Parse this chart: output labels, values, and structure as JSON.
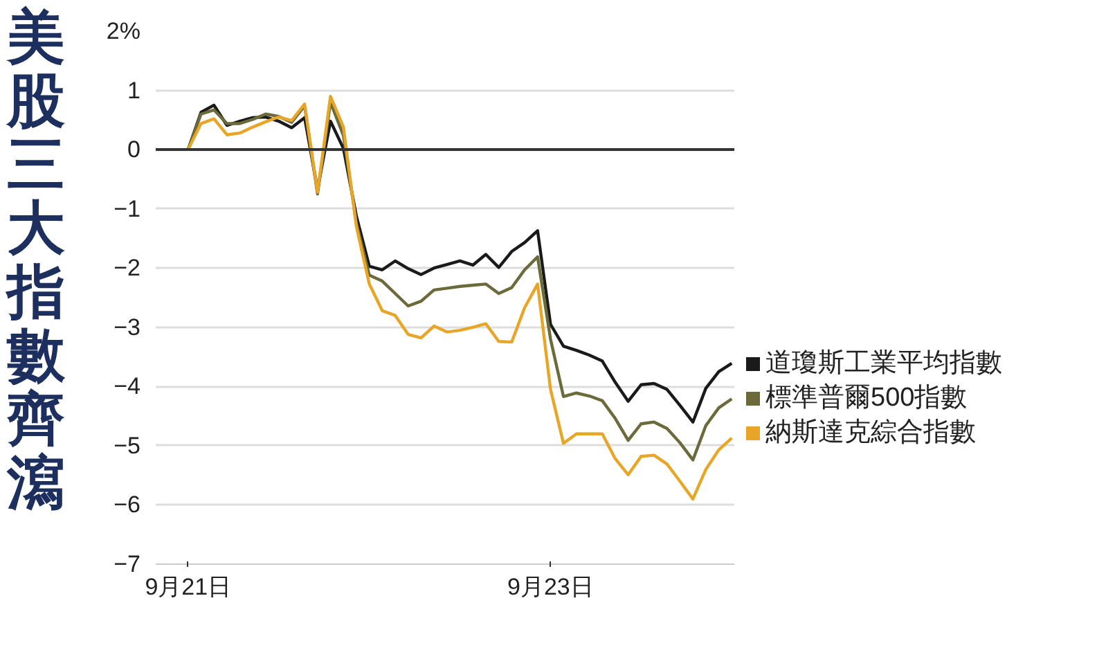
{
  "chart_data": {
    "type": "line",
    "title": "美股三大指數齊瀉",
    "categories": [
      "9月21日",
      null,
      null,
      null,
      null,
      null,
      null,
      null,
      null,
      null,
      null,
      null,
      null,
      null,
      null,
      null,
      null,
      null,
      null,
      null,
      null,
      null,
      null,
      null,
      null,
      null,
      null,
      null,
      "9月23日",
      null,
      null,
      null,
      null,
      null,
      null,
      null,
      null,
      null,
      null,
      null,
      null,
      null,
      null
    ],
    "ylim": [
      -7,
      2
    ],
    "yticks": [
      {
        "value": 2,
        "label": "2%"
      },
      1,
      0,
      {
        "value": -1,
        "label": "−1"
      },
      {
        "value": -2,
        "label": "−2"
      },
      {
        "value": -3,
        "label": "−3"
      },
      {
        "value": -4,
        "label": "−4"
      },
      {
        "value": -5,
        "label": "−5"
      },
      {
        "value": -6,
        "label": "−6"
      },
      {
        "value": -7,
        "label": "−7"
      }
    ],
    "grid": "y",
    "legend": "right",
    "line_style": "solid",
    "ref_lines": [
      {
        "axis": "y",
        "value": 0,
        "label": null,
        "color": "#333333"
      }
    ],
    "series": [
      {
        "name": "道瓊斯工業平均指數",
        "color": "#1a1a1a",
        "values": [
          0,
          0.63,
          0.75,
          0.41,
          0.48,
          0.54,
          0.55,
          0.48,
          0.37,
          0.54,
          -0.67,
          0.48,
          0.02,
          -1.12,
          -1.97,
          -2.03,
          -1.88,
          -2.01,
          -2.11,
          -2.0,
          -1.94,
          -1.88,
          -1.95,
          -1.77,
          -1.99,
          -1.72,
          -1.57,
          -1.37,
          -2.95,
          -3.32,
          -3.39,
          -3.47,
          -3.57,
          -3.93,
          -4.25,
          -3.97,
          -3.95,
          -4.05,
          -4.32,
          -4.6,
          -4.03,
          -3.75,
          -3.61
        ]
      },
      {
        "name": "標準普爾500指數",
        "color": "#6b6a3a",
        "values": [
          0,
          0.6,
          0.67,
          0.44,
          0.44,
          0.51,
          0.6,
          0.56,
          0.46,
          0.74,
          -0.75,
          0.8,
          0.24,
          -1.24,
          -2.12,
          -2.22,
          -2.43,
          -2.64,
          -2.56,
          -2.37,
          -2.34,
          -2.31,
          -2.29,
          -2.27,
          -2.43,
          -2.33,
          -2.03,
          -1.81,
          -3.2,
          -4.17,
          -4.11,
          -4.16,
          -4.24,
          -4.54,
          -4.91,
          -4.63,
          -4.6,
          -4.71,
          -4.95,
          -5.24,
          -4.66,
          -4.36,
          -4.21
        ]
      },
      {
        "name": "納斯達克綜合指數",
        "color": "#e8a628",
        "values": [
          0,
          0.44,
          0.52,
          0.25,
          0.28,
          0.38,
          0.47,
          0.55,
          0.49,
          0.77,
          -0.72,
          0.9,
          0.38,
          -1.3,
          -2.27,
          -2.72,
          -2.8,
          -3.12,
          -3.18,
          -2.98,
          -3.08,
          -3.05,
          -3.0,
          -2.94,
          -3.24,
          -3.25,
          -2.67,
          -2.27,
          -4.05,
          -4.96,
          -4.8,
          -4.8,
          -4.8,
          -5.22,
          -5.49,
          -5.18,
          -5.16,
          -5.31,
          -5.6,
          -5.9,
          -5.4,
          -5.07,
          -4.87
        ]
      }
    ]
  }
}
